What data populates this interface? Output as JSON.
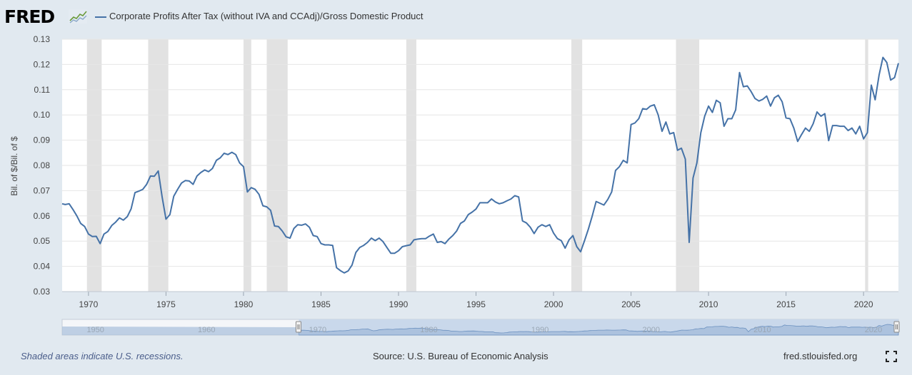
{
  "header": {
    "logo_text": "FRED",
    "legend_label": "Corporate Profits After Tax (without IVA and CCAdj)/Gross Domestic Product"
  },
  "icons": {
    "logo": "fred-graph-icon",
    "fullscreen": "fullscreen-icon"
  },
  "colors": {
    "series": "#4572a7",
    "recession": "#e2e2e2",
    "background": "#e1e9f0",
    "navigator_fill": "#a7bfdc"
  },
  "footer": {
    "note": "Shaded areas indicate U.S. recessions.",
    "source": "Source: U.S. Bureau of Economic Analysis",
    "site": "fred.stlouisfed.org"
  },
  "chart_data": {
    "type": "line",
    "title": "",
    "xlabel": "",
    "ylabel": "Bil. of $/Bil. of $",
    "xlim": [
      1968.3,
      2022.25
    ],
    "ylim": [
      0.03,
      0.13
    ],
    "yticks": [
      "0.03",
      "0.04",
      "0.05",
      "0.06",
      "0.07",
      "0.08",
      "0.09",
      "0.10",
      "0.11",
      "0.12",
      "0.13"
    ],
    "xticks": [
      "1970",
      "1975",
      "1980",
      "1985",
      "1990",
      "1995",
      "2000",
      "2005",
      "2010",
      "2015",
      "2020"
    ],
    "grid": true,
    "legend": "top-left",
    "recessions": [
      [
        1969.9,
        1970.85
      ],
      [
        1973.85,
        1975.15
      ],
      [
        1980.0,
        1980.5
      ],
      [
        1981.5,
        1982.85
      ],
      [
        1990.5,
        1991.15
      ],
      [
        2001.15,
        2001.85
      ],
      [
        2007.9,
        2009.4
      ],
      [
        2020.1,
        2020.3
      ]
    ],
    "series": [
      {
        "name": "Corporate Profits After Tax (without IVA and CCAdj)/Gross Domestic Product",
        "x": [
          1968.3,
          1968.5,
          1968.75,
          1969.0,
          1969.25,
          1969.5,
          1969.75,
          1970.0,
          1970.25,
          1970.5,
          1970.75,
          1971.0,
          1971.25,
          1971.5,
          1971.75,
          1972.0,
          1972.25,
          1972.5,
          1972.75,
          1973.0,
          1973.25,
          1973.5,
          1973.75,
          1974.0,
          1974.25,
          1974.5,
          1974.75,
          1975.0,
          1975.25,
          1975.5,
          1975.75,
          1976.0,
          1976.25,
          1976.5,
          1976.75,
          1977.0,
          1977.25,
          1977.5,
          1977.75,
          1978.0,
          1978.25,
          1978.5,
          1978.75,
          1979.0,
          1979.25,
          1979.5,
          1979.75,
          1980.0,
          1980.25,
          1980.5,
          1980.75,
          1981.0,
          1981.25,
          1981.5,
          1981.75,
          1982.0,
          1982.25,
          1982.5,
          1982.75,
          1983.0,
          1983.25,
          1983.5,
          1983.75,
          1984.0,
          1984.25,
          1984.5,
          1984.75,
          1985.0,
          1985.25,
          1985.5,
          1985.75,
          1986.0,
          1986.25,
          1986.5,
          1986.75,
          1987.0,
          1987.25,
          1987.5,
          1987.75,
          1988.0,
          1988.25,
          1988.5,
          1988.75,
          1989.0,
          1989.25,
          1989.5,
          1989.75,
          1990.0,
          1990.25,
          1990.5,
          1990.75,
          1991.0,
          1991.25,
          1991.5,
          1991.75,
          1992.0,
          1992.25,
          1992.5,
          1992.75,
          1993.0,
          1993.25,
          1993.5,
          1993.75,
          1994.0,
          1994.25,
          1994.5,
          1994.75,
          1995.0,
          1995.25,
          1995.5,
          1995.75,
          1996.0,
          1996.25,
          1996.5,
          1996.75,
          1997.0,
          1997.25,
          1997.5,
          1997.75,
          1998.0,
          1998.25,
          1998.5,
          1998.75,
          1999.0,
          1999.25,
          1999.5,
          1999.75,
          2000.0,
          2000.25,
          2000.5,
          2000.75,
          2001.0,
          2001.25,
          2001.5,
          2001.75,
          2002.0,
          2002.25,
          2002.5,
          2002.75,
          2003.0,
          2003.25,
          2003.5,
          2003.75,
          2004.0,
          2004.25,
          2004.5,
          2004.75,
          2005.0,
          2005.25,
          2005.5,
          2005.75,
          2006.0,
          2006.25,
          2006.5,
          2006.75,
          2007.0,
          2007.25,
          2007.5,
          2007.75,
          2008.0,
          2008.25,
          2008.5,
          2008.75,
          2009.0,
          2009.25,
          2009.5,
          2009.75,
          2010.0,
          2010.25,
          2010.5,
          2010.75,
          2011.0,
          2011.25,
          2011.5,
          2011.75,
          2012.0,
          2012.25,
          2012.5,
          2012.75,
          2013.0,
          2013.25,
          2013.5,
          2013.75,
          2014.0,
          2014.25,
          2014.5,
          2014.75,
          2015.0,
          2015.25,
          2015.5,
          2015.75,
          2016.0,
          2016.25,
          2016.5,
          2016.75,
          2017.0,
          2017.25,
          2017.5,
          2017.75,
          2018.0,
          2018.25,
          2018.5,
          2018.75,
          2019.0,
          2019.25,
          2019.5,
          2019.75,
          2020.0,
          2020.25,
          2020.5,
          2020.75,
          2021.0,
          2021.25,
          2021.5,
          2021.75,
          2022.0,
          2022.25
        ],
        "values": [
          0.0648,
          0.0645,
          0.0648,
          0.0625,
          0.06,
          0.057,
          0.0558,
          0.0528,
          0.0518,
          0.0519,
          0.049,
          0.0528,
          0.0538,
          0.0562,
          0.0575,
          0.0592,
          0.0583,
          0.0597,
          0.0628,
          0.0692,
          0.0698,
          0.0705,
          0.0725,
          0.0758,
          0.0757,
          0.0778,
          0.0675,
          0.0587,
          0.0605,
          0.0678,
          0.0705,
          0.073,
          0.074,
          0.0738,
          0.0725,
          0.0758,
          0.0772,
          0.0782,
          0.0775,
          0.0788,
          0.082,
          0.083,
          0.0848,
          0.0843,
          0.0852,
          0.0843,
          0.081,
          0.0795,
          0.0695,
          0.0712,
          0.0705,
          0.0685,
          0.064,
          0.0636,
          0.0622,
          0.056,
          0.0558,
          0.054,
          0.0517,
          0.0512,
          0.055,
          0.0565,
          0.0563,
          0.0568,
          0.0555,
          0.0522,
          0.0518,
          0.049,
          0.0485,
          0.0485,
          0.0483,
          0.0395,
          0.0383,
          0.0374,
          0.0382,
          0.0405,
          0.0455,
          0.0475,
          0.0483,
          0.0495,
          0.0512,
          0.0502,
          0.0512,
          0.0498,
          0.0475,
          0.0452,
          0.0452,
          0.0462,
          0.0478,
          0.0482,
          0.0485,
          0.0505,
          0.0508,
          0.051,
          0.051,
          0.052,
          0.0528,
          0.0495,
          0.0498,
          0.049,
          0.0508,
          0.0522,
          0.054,
          0.057,
          0.058,
          0.0605,
          0.0615,
          0.0627,
          0.0652,
          0.0652,
          0.0652,
          0.0667,
          0.0655,
          0.0648,
          0.0652,
          0.066,
          0.0667,
          0.068,
          0.0675,
          0.058,
          0.0572,
          0.0555,
          0.053,
          0.0555,
          0.0565,
          0.0558,
          0.0565,
          0.0532,
          0.051,
          0.0502,
          0.0472,
          0.0505,
          0.0522,
          0.0478,
          0.0458,
          0.0502,
          0.0548,
          0.06,
          0.0657,
          0.065,
          0.0643,
          0.0665,
          0.0695,
          0.078,
          0.0795,
          0.082,
          0.081,
          0.0962,
          0.0968,
          0.0985,
          0.1025,
          0.1022,
          0.1035,
          0.104,
          0.1,
          0.0935,
          0.0972,
          0.0925,
          0.093,
          0.086,
          0.0868,
          0.0825,
          0.0495,
          0.075,
          0.081,
          0.093,
          0.0995,
          0.1035,
          0.101,
          0.1058,
          0.1048,
          0.0955,
          0.0985,
          0.0985,
          0.102,
          0.1168,
          0.1112,
          0.1115,
          0.1092,
          0.1065,
          0.1055,
          0.1062,
          0.1075,
          0.1035,
          0.1068,
          0.1078,
          0.1052,
          0.0988,
          0.0985,
          0.0948,
          0.0895,
          0.0922,
          0.0948,
          0.0935,
          0.0965,
          0.1012,
          0.0995,
          0.1005,
          0.0898,
          0.0958,
          0.0958,
          0.0955,
          0.0955,
          0.0938,
          0.0948,
          0.0925,
          0.0955,
          0.0905,
          0.093,
          0.1118,
          0.106,
          0.1158,
          0.1228,
          0.1208,
          0.1138,
          0.1148,
          0.1205
        ]
      }
    ]
  },
  "navigator": {
    "labels": [
      "1950",
      "1960",
      "1970",
      "1980",
      "1990",
      "2000",
      "2010",
      "2020"
    ],
    "range": [
      1947,
      2022.25
    ],
    "selection": [
      1968.3,
      2022.25
    ]
  }
}
